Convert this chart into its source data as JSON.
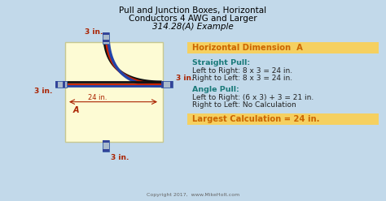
{
  "bg_color": "#c2d9ea",
  "title_line1": "Pull and Junction Boxes, Horizontal",
  "title_line2": "Conductors 4 AWG and Larger",
  "title_line3": "314.28(A) Example",
  "box_fill": "#fdfbd4",
  "box_edge": "#c8c890",
  "horiz_dim_label": "Horizontal Dimension  A",
  "horiz_dim_bg": "#f5d060",
  "straight_pull_label": "Straight Pull:",
  "straight_pull_line1": "Left to Right: 8 x 3 = 24 in.",
  "straight_pull_line2": "Right to Left: 8 x 3 = 24 in.",
  "angle_pull_label": "Angle Pull:",
  "angle_pull_line1": "Left to Right: (6 x 3) + 3 = 21 in.",
  "angle_pull_line2": "Right to Left: No Calculation",
  "largest_calc": "Largest Calculation = 24 in.",
  "largest_bg": "#f5d060",
  "copyright": "Copyright 2017,  www.MikeHolt.com",
  "dim_color": "#aa2200",
  "wire_black": "#111111",
  "wire_red": "#cc2200",
  "wire_blue": "#2244aa",
  "connector_face": "#aabbcc",
  "connector_edge": "#4466aa",
  "teal_color": "#1a7a7a",
  "orange_color": "#cc6600",
  "label_color": "#333300"
}
